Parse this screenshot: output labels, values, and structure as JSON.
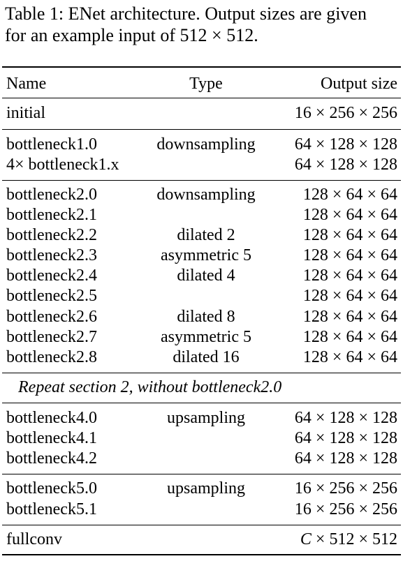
{
  "caption": {
    "line1": "Table 1: ENet architecture. Output sizes are given",
    "line2": "for an example input of 512 × 512."
  },
  "header": {
    "name": "Name",
    "type": "Type",
    "output": "Output size"
  },
  "sections": [
    {
      "rows": [
        {
          "name": "initial",
          "type": "",
          "output": "16 × 256 × 256"
        }
      ]
    },
    {
      "rows": [
        {
          "name": "bottleneck1.0",
          "type": "downsampling",
          "output": "64 × 128 × 128"
        },
        {
          "name": "4× bottleneck1.x",
          "type": "",
          "output": "64 × 128 × 128"
        }
      ]
    },
    {
      "rows": [
        {
          "name": "bottleneck2.0",
          "type": "downsampling",
          "output": "128 × 64 × 64"
        },
        {
          "name": "bottleneck2.1",
          "type": "",
          "output": "128 × 64 × 64"
        },
        {
          "name": "bottleneck2.2",
          "type": "dilated 2",
          "output": "128 × 64 × 64"
        },
        {
          "name": "bottleneck2.3",
          "type": "asymmetric 5",
          "output": "128 × 64 × 64"
        },
        {
          "name": "bottleneck2.4",
          "type": "dilated 4",
          "output": "128 × 64 × 64"
        },
        {
          "name": "bottleneck2.5",
          "type": "",
          "output": "128 × 64 × 64"
        },
        {
          "name": "bottleneck2.6",
          "type": "dilated 8",
          "output": "128 × 64 × 64"
        },
        {
          "name": "bottleneck2.7",
          "type": "asymmetric 5",
          "output": "128 × 64 × 64"
        },
        {
          "name": "bottleneck2.8",
          "type": "dilated 16",
          "output": "128 × 64 × 64"
        }
      ]
    },
    {
      "repeat_note": "Repeat section 2, without bottleneck2.0"
    },
    {
      "rows": [
        {
          "name": "bottleneck4.0",
          "type": "upsampling",
          "output": "64 × 128 × 128"
        },
        {
          "name": "bottleneck4.1",
          "type": "",
          "output": "64 × 128 × 128"
        },
        {
          "name": "bottleneck4.2",
          "type": "",
          "output": "64 × 128 × 128"
        }
      ]
    },
    {
      "rows": [
        {
          "name": "bottleneck5.0",
          "type": "upsampling",
          "output": "16 × 256 × 256"
        },
        {
          "name": "bottleneck5.1",
          "type": "",
          "output": "16 × 256 × 256"
        }
      ]
    },
    {
      "rows": [
        {
          "name": "fullconv",
          "type": "",
          "output_prefix": "C",
          "output": " × 512 × 512"
        }
      ]
    }
  ]
}
